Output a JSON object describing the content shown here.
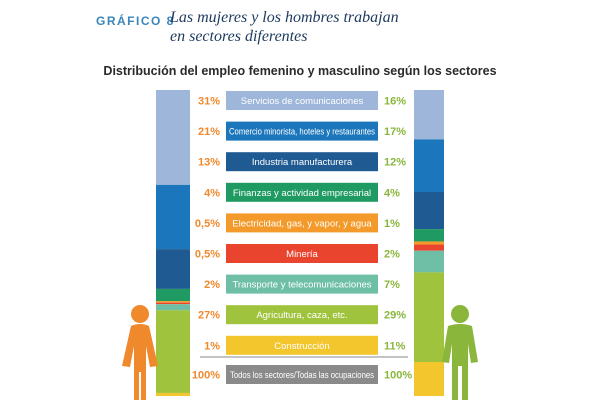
{
  "header": {
    "figure_label": "GRÁFICO 8",
    "title_line1": "Las mujeres y los hombres trabajan",
    "title_line2": "en sectores diferentes"
  },
  "colors": {
    "women_pct": "#f0892b",
    "men_pct": "#8ab63c",
    "axis_line": "#8a8a8a"
  },
  "icons": {
    "women": "woman-figure-icon",
    "men": "man-figure-icon"
  },
  "chart_data": {
    "type": "bar",
    "subtype": "stacked-100-percent-comparison",
    "title": "Distribución del empleo femenino y masculino según los sectores",
    "categories": [
      "Servicios de comunicaciones",
      "Comercio minorista, hoteles y restaurantes",
      "Industria manufacturera",
      "Finanzas y actividad empresarial",
      "Electricidad, gas, y vapor, y agua",
      "Minería",
      "Transporte y telecomunicaciones",
      "Agricultura, caza, etc.",
      "Construcción"
    ],
    "category_colors": [
      "#9db6d9",
      "#1b76bb",
      "#1f5a92",
      "#1f9a63",
      "#f39a2a",
      "#e8442e",
      "#6fbfa6",
      "#9fc33c",
      "#f2c62c"
    ],
    "series": [
      {
        "values": [
          31,
          21,
          13,
          4,
          0.5,
          0.5,
          2,
          27,
          1
        ],
        "labels": [
          "31%",
          "21%",
          "13%",
          "4%",
          "0,5%",
          "0,5%",
          "2%",
          "27%",
          "1%"
        ]
      },
      {
        "values": [
          16,
          17,
          12,
          4,
          1,
          2,
          7,
          29,
          11
        ],
        "labels": [
          "16%",
          "17%",
          "12%",
          "4%",
          "1%",
          "2%",
          "7%",
          "29%",
          "11%"
        ]
      }
    ],
    "total": {
      "label": "Todos los sectores/Todas las ocupaciones",
      "women": "100%",
      "men": "100%",
      "color": "#8a8a8a"
    }
  }
}
